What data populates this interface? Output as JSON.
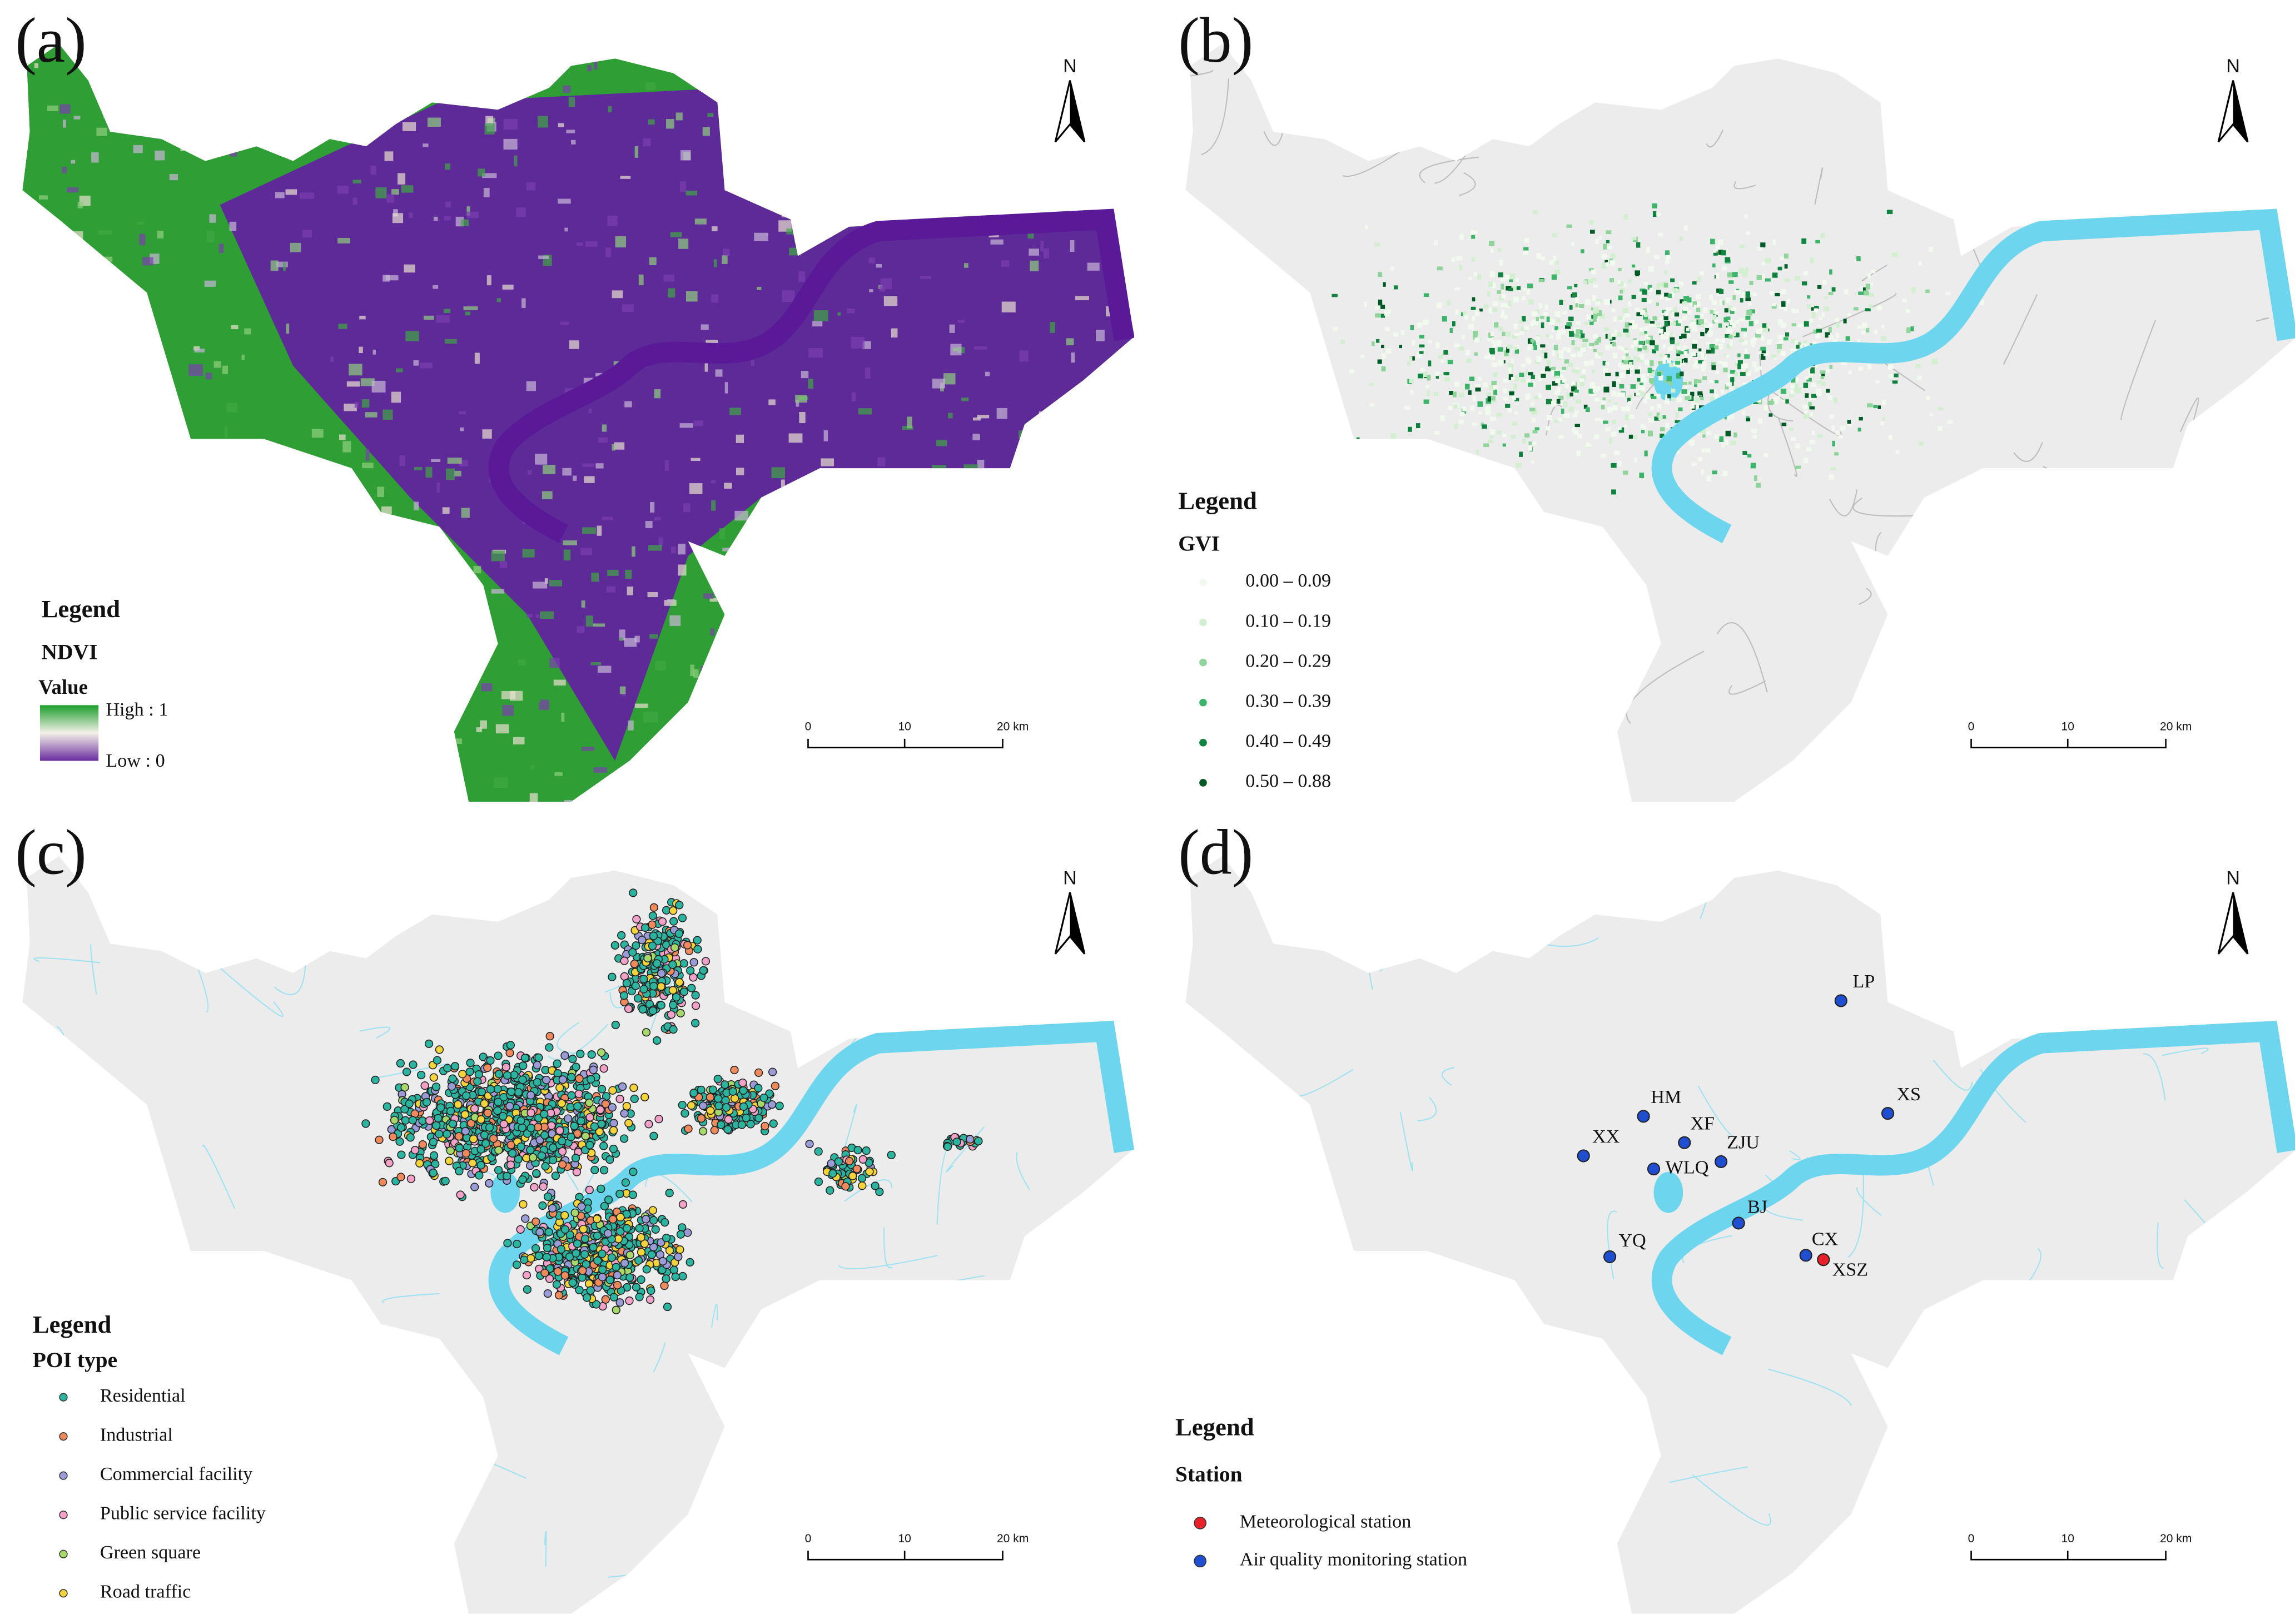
{
  "panels": [
    {
      "label": "(a)",
      "north": "N",
      "scale": [
        "0",
        "10",
        "20 km"
      ],
      "legend": {
        "title": "Legend",
        "subtitle": "NDVI",
        "field": "Value",
        "high": "High : 1",
        "low": "Low : 0"
      }
    },
    {
      "label": "(b)",
      "north": "N",
      "scale": [
        "0",
        "10",
        "20 km"
      ],
      "legend": {
        "title": "Legend",
        "subtitle": "GVI",
        "items": [
          {
            "label": "0.00  –  0.09",
            "color": "#f2faf0"
          },
          {
            "label": "0.10  –  0.19",
            "color": "#d2efcf"
          },
          {
            "label": "0.20  –  0.29",
            "color": "#8fd49a"
          },
          {
            "label": "0.30  –  0.39",
            "color": "#3cb46a"
          },
          {
            "label": "0.40  –  0.49",
            "color": "#10833e"
          },
          {
            "label": "0.50  –  0.88",
            "color": "#005a26"
          }
        ]
      }
    },
    {
      "label": "(c)",
      "north": "N",
      "scale": [
        "0",
        "10",
        "20 km"
      ],
      "legend": {
        "title": "Legend",
        "subtitle": "POI type",
        "items": [
          {
            "label": "Residential",
            "color": "#2bb5a0"
          },
          {
            "label": "Industrial",
            "color": "#f08a5d"
          },
          {
            "label": "Commercial facility",
            "color": "#9b9bd8"
          },
          {
            "label": "Public service facility",
            "color": "#f2a2c8"
          },
          {
            "label": "Green square",
            "color": "#a6d96a"
          },
          {
            "label": "Road traffic",
            "color": "#f5d33a"
          }
        ]
      }
    },
    {
      "label": "(d)",
      "north": "N",
      "scale": [
        "0",
        "10",
        "20 km"
      ],
      "legend": {
        "title": "Legend",
        "subtitle": "Station",
        "items": [
          {
            "label": "Meteorological station",
            "color": "#e8202a"
          },
          {
            "label": "Air quality monitoring station",
            "color": "#1f4fd0"
          }
        ]
      },
      "stations": [
        {
          "name": "LP",
          "type": 1
        },
        {
          "name": "HM",
          "type": 1
        },
        {
          "name": "XF",
          "type": 1
        },
        {
          "name": "ZJU",
          "type": 1
        },
        {
          "name": "XX",
          "type": 1
        },
        {
          "name": "WLQ",
          "type": 1
        },
        {
          "name": "BJ",
          "type": 1
        },
        {
          "name": "YQ",
          "type": 1
        },
        {
          "name": "CX",
          "type": 1
        },
        {
          "name": "XSZ",
          "type": 0
        },
        {
          "name": "XS",
          "type": 1
        }
      ]
    }
  ]
}
